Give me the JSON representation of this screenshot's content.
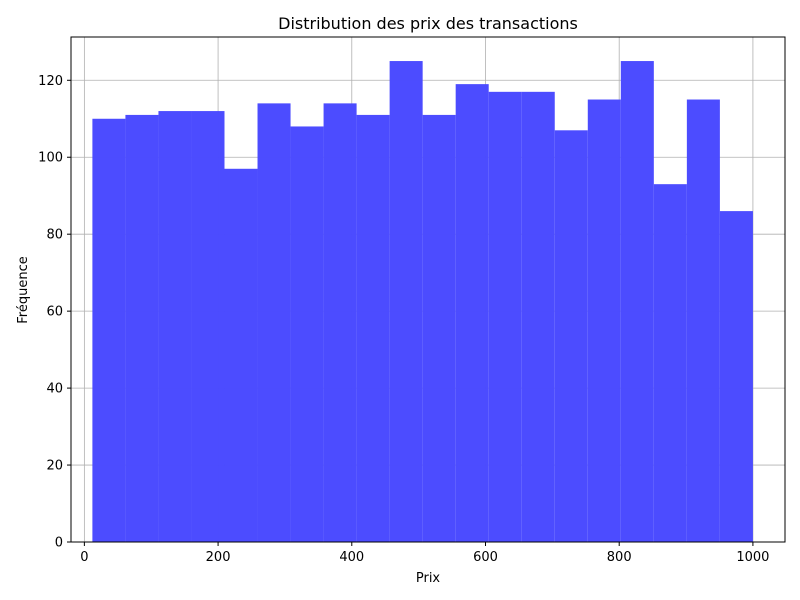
{
  "chart_data": {
    "type": "histogram",
    "title": "Distribution des prix des transactions",
    "xlabel": "Prix",
    "ylabel": "Fréquence",
    "xlim": [
      -20,
      1048
    ],
    "ylim": [
      0,
      131.25
    ],
    "x_ticks": [
      0,
      200,
      400,
      600,
      800,
      1000
    ],
    "y_ticks": [
      0,
      20,
      40,
      60,
      80,
      100,
      120
    ],
    "grid": true,
    "bar_color": "#4a4aff",
    "bin_edges": [
      12,
      61.4,
      110.8,
      160.2,
      209.6,
      259,
      308.4,
      357.8,
      407.2,
      456.6,
      506,
      555.4,
      604.8,
      654.2,
      703.6,
      753,
      802.4,
      851.8,
      901.2,
      950.6,
      1000
    ],
    "values": [
      110,
      111,
      112,
      112,
      97,
      114,
      108,
      114,
      111,
      125,
      111,
      119,
      117,
      117,
      107,
      115,
      125,
      93,
      115,
      86
    ]
  }
}
